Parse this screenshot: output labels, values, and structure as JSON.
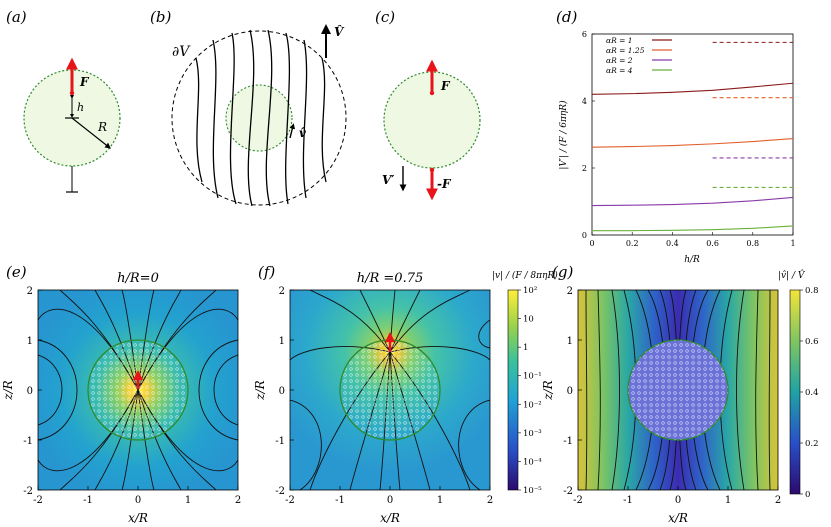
{
  "panel_labels": {
    "a": "(a)",
    "b": "(b)",
    "c": "(c)",
    "d": "(d)",
    "e": "(e)",
    "f": "(f)",
    "g": "(g)"
  },
  "sketch_a": {
    "force": "F",
    "height": "h",
    "radius": "R"
  },
  "sketch_b": {
    "boundary": "∂V",
    "far_velocity": "V̂",
    "local_velocity": "v̂"
  },
  "sketch_c": {
    "force_top": "F",
    "force_bottom": "-F",
    "velocity": "V′"
  },
  "colors": {
    "force_arrow": "#e8141a",
    "sphere_fill": "#eef8e3",
    "sphere_border": "#2e8b2e",
    "curve_aR1": "#8b1a1a",
    "curve_aR125": "#e0602a",
    "curve_aR2": "#8a3aa8",
    "curve_aR4": "#6ab03a"
  },
  "chart_data": [
    {
      "type": "line",
      "panel": "(d)",
      "xlabel": "h/R",
      "ylabel": "|V′| / (F / 6πηR)",
      "xlim": [
        0,
        1
      ],
      "ylim": [
        0,
        6
      ],
      "xticks": [
        "0",
        "0.2",
        "0.4",
        "0.6",
        "0.8",
        "1"
      ],
      "yticks": [
        "0",
        "2",
        "4",
        "6"
      ],
      "x": [
        0,
        0.2,
        0.4,
        0.6,
        0.8,
        1.0
      ],
      "series": [
        {
          "name": "αR = 1",
          "color": "#8b1a1a",
          "values": [
            4.2,
            4.22,
            4.26,
            4.32,
            4.42,
            4.53
          ],
          "asymptote": 5.75
        },
        {
          "name": "αR = 1.25",
          "color": "#e0602a",
          "values": [
            2.62,
            2.64,
            2.67,
            2.72,
            2.79,
            2.88
          ],
          "asymptote": 4.1
        },
        {
          "name": "αR = 2",
          "color": "#8a3aa8",
          "values": [
            0.88,
            0.89,
            0.91,
            0.95,
            1.02,
            1.12
          ],
          "asymptote": 2.3
        },
        {
          "name": "αR = 4",
          "color": "#6ab03a",
          "values": [
            0.13,
            0.13,
            0.14,
            0.16,
            0.2,
            0.27
          ],
          "asymptote": 1.42
        }
      ],
      "legend_position": "top-left"
    },
    {
      "type": "heatmap",
      "panel": "(e)",
      "title": "h/R=0",
      "xlabel": "x/R",
      "ylabel": "z/R",
      "xlim": [
        -2,
        2
      ],
      "ylim": [
        -2,
        2
      ],
      "xticks": [
        "-2",
        "-1",
        "0",
        "1",
        "2"
      ],
      "yticks": [
        "-2",
        "-1",
        "0",
        "1",
        "2"
      ],
      "force_position": [
        0,
        0
      ]
    },
    {
      "type": "heatmap",
      "panel": "(f)",
      "title": "h/R =0.75",
      "xlabel": "x/R",
      "ylabel": "z/R",
      "xlim": [
        -2,
        2
      ],
      "ylim": [
        -2,
        2
      ],
      "xticks": [
        "-2",
        "-1",
        "0",
        "1",
        "2"
      ],
      "yticks": [
        "-2",
        "-1",
        "0",
        "1",
        "2"
      ],
      "force_position": [
        0,
        0.75
      ],
      "colorbar": {
        "label": "|v| / (F / 8πηR)",
        "scale": "log",
        "ticks": [
          "10²",
          "10",
          "1",
          "10⁻¹",
          "10⁻²",
          "10⁻³",
          "10⁻⁴",
          "10⁻⁵"
        ]
      }
    },
    {
      "type": "heatmap",
      "panel": "(g)",
      "xlabel": "x/R",
      "ylabel": "z/R",
      "xlim": [
        -2,
        2
      ],
      "ylim": [
        -2,
        2
      ],
      "xticks": [
        "-2",
        "-1",
        "0",
        "1",
        "2"
      ],
      "yticks": [
        "-2",
        "-1",
        "0",
        "1",
        "2"
      ],
      "colorbar": {
        "label": "|v̂| / V̂",
        "scale": "linear",
        "ticks": [
          "0.8",
          "0.6",
          "0.4",
          "0.2",
          "0"
        ]
      }
    }
  ]
}
